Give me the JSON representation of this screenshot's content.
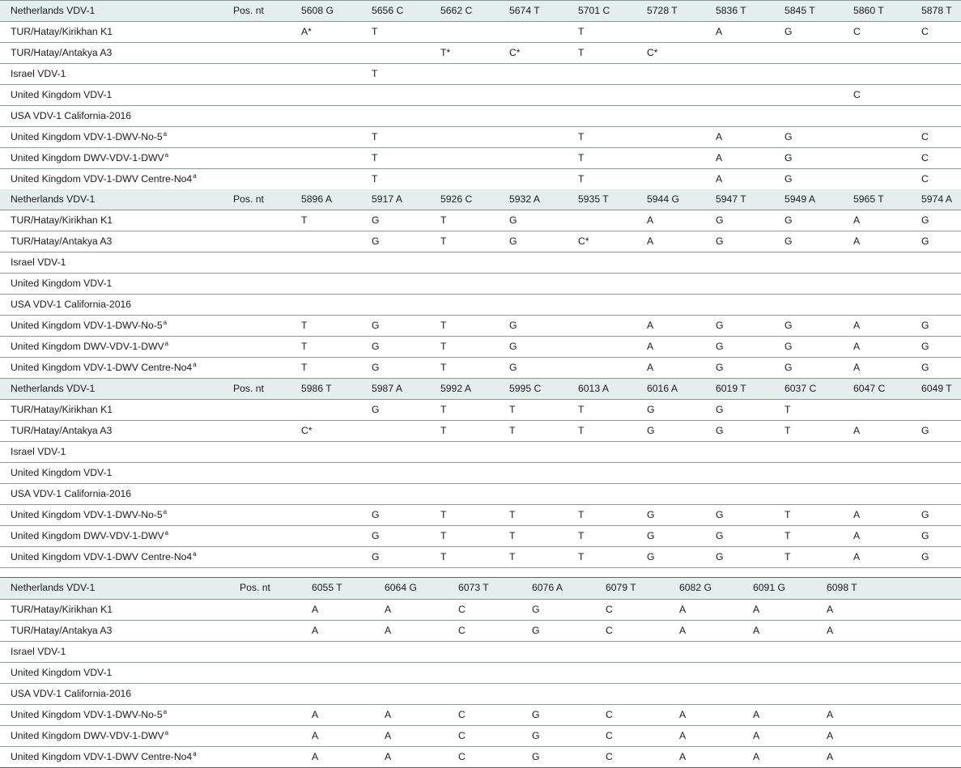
{
  "table": {
    "blocks": [
      {
        "header": {
          "label": "Netherlands VDV-1",
          "pos_label": "Pos. nt",
          "positions": [
            "5608 G",
            "5656 C",
            "5662 C",
            "5674 T",
            "5701 C",
            "5728 T",
            "5836 T",
            "5845 T",
            "5860 T",
            "5878 T"
          ]
        },
        "rows": [
          {
            "label": "TUR/Hatay/Kirikhan K1",
            "sup": "",
            "cells": [
              "A*",
              "T",
              "",
              "",
              "T",
              "",
              "A",
              "G",
              "C",
              "C"
            ]
          },
          {
            "label": "TUR/Hatay/Antakya A3",
            "sup": "",
            "cells": [
              "",
              "",
              "T*",
              "C*",
              "T",
              "C*",
              "",
              "",
              "",
              ""
            ]
          },
          {
            "label": "Israel VDV-1",
            "sup": "",
            "cells": [
              "",
              "T",
              "",
              "",
              "",
              "",
              "",
              "",
              "",
              ""
            ]
          },
          {
            "label": "United Kingdom VDV-1",
            "sup": "",
            "cells": [
              "",
              "",
              "",
              "",
              "",
              "",
              "",
              "",
              "C",
              ""
            ]
          },
          {
            "label": "USA VDV-1 California-2016",
            "sup": "",
            "cells": [
              "",
              "",
              "",
              "",
              "",
              "",
              "",
              "",
              "",
              ""
            ]
          },
          {
            "label": "United Kingdom VDV-1-DWV-No-5",
            "sup": "a",
            "cells": [
              "",
              "T",
              "",
              "",
              "T",
              "",
              "A",
              "G",
              "",
              "C"
            ]
          },
          {
            "label": "United Kingdom DWV-VDV-1-DWV",
            "sup": "a",
            "cells": [
              "",
              "T",
              "",
              "",
              "T",
              "",
              "A",
              "G",
              "",
              "C"
            ]
          },
          {
            "label": "United Kingdom VDV-1-DWV Centre-No4",
            "sup": "a",
            "cells": [
              "",
              "T",
              "",
              "",
              "T",
              "",
              "A",
              "G",
              "",
              "C"
            ]
          }
        ]
      },
      {
        "header": {
          "label": "Netherlands VDV-1",
          "pos_label": "Pos. nt",
          "positions": [
            "5896 A",
            "5917 A",
            "5926 C",
            "5932 A",
            "5935 T",
            "5944 G",
            "5947 T",
            "5949 A",
            "5965 T",
            "5974 A"
          ]
        },
        "rows": [
          {
            "label": "TUR/Hatay/Kirikhan K1",
            "sup": "",
            "cells": [
              "T",
              "G",
              "T",
              "G",
              "",
              "A",
              "G",
              "G",
              "A",
              "G"
            ]
          },
          {
            "label": "TUR/Hatay/Antakya A3",
            "sup": "",
            "cells": [
              "",
              "G",
              "T",
              "G",
              "C*",
              "A",
              "G",
              "G",
              "A",
              "G"
            ]
          },
          {
            "label": "Israel VDV-1",
            "sup": "",
            "cells": [
              "",
              "",
              "",
              "",
              "",
              "",
              "",
              "",
              "",
              ""
            ]
          },
          {
            "label": "United Kingdom VDV-1",
            "sup": "",
            "cells": [
              "",
              "",
              "",
              "",
              "",
              "",
              "",
              "",
              "",
              ""
            ]
          },
          {
            "label": "USA VDV-1 California-2016",
            "sup": "",
            "cells": [
              "",
              "",
              "",
              "",
              "",
              "",
              "",
              "",
              "",
              ""
            ]
          },
          {
            "label": "United Kingdom VDV-1-DWV-No-5",
            "sup": "a",
            "cells": [
              "T",
              "G",
              "T",
              "G",
              "",
              "A",
              "G",
              "G",
              "A",
              "G"
            ]
          },
          {
            "label": "United Kingdom DWV-VDV-1-DWV",
            "sup": "a",
            "cells": [
              "T",
              "G",
              "T",
              "G",
              "",
              "A",
              "G",
              "G",
              "A",
              "G"
            ]
          },
          {
            "label": "United Kingdom VDV-1-DWV Centre-No4",
            "sup": "a",
            "cells": [
              "T",
              "G",
              "T",
              "G",
              "",
              "A",
              "G",
              "G",
              "A",
              "G"
            ]
          }
        ]
      },
      {
        "header": {
          "label": "Netherlands VDV-1",
          "pos_label": "Pos. nt",
          "positions": [
            "5986 T",
            "5987 A",
            "5992 A",
            "5995 C",
            "6013 A",
            "6016 A",
            "6019 T",
            "6037 C",
            "6047 C",
            "6049 T"
          ]
        },
        "rows": [
          {
            "label": "TUR/Hatay/Kirikhan K1",
            "sup": "",
            "cells": [
              "",
              "G",
              "T",
              "T",
              "T",
              "G",
              "G",
              "T",
              "",
              ""
            ]
          },
          {
            "label": "TUR/Hatay/Antakya A3",
            "sup": "",
            "cells": [
              "C*",
              "",
              "T",
              "T",
              "T",
              "G",
              "G",
              "T",
              "A",
              "G"
            ]
          },
          {
            "label": "Israel VDV-1",
            "sup": "",
            "cells": [
              "",
              "",
              "",
              "",
              "",
              "",
              "",
              "",
              "",
              ""
            ]
          },
          {
            "label": "United Kingdom VDV-1",
            "sup": "",
            "cells": [
              "",
              "",
              "",
              "",
              "",
              "",
              "",
              "",
              "",
              ""
            ]
          },
          {
            "label": "USA VDV-1 California-2016",
            "sup": "",
            "cells": [
              "",
              "",
              "",
              "",
              "",
              "",
              "",
              "",
              "",
              ""
            ]
          },
          {
            "label": "United Kingdom VDV-1-DWV-No-5",
            "sup": "a",
            "cells": [
              "",
              "G",
              "T",
              "T",
              "T",
              "G",
              "G",
              "T",
              "A",
              "G"
            ]
          },
          {
            "label": "United Kingdom DWV-VDV-1-DWV",
            "sup": "a",
            "cells": [
              "",
              "G",
              "T",
              "T",
              "T",
              "G",
              "G",
              "T",
              "A",
              "G"
            ]
          },
          {
            "label": "United Kingdom VDV-1-DWV Centre-No4",
            "sup": "a",
            "cells": [
              "",
              "G",
              "T",
              "T",
              "T",
              "G",
              "G",
              "T",
              "A",
              "G"
            ]
          }
        ]
      },
      {
        "header": {
          "label": "Netherlands VDV-1",
          "pos_label": "Pos. nt",
          "positions": [
            "6055 T",
            "6064 G",
            "6073 T",
            "6076 A",
            "6079 T",
            "6082 G",
            "6091 G",
            "6098 T"
          ]
        },
        "rows": [
          {
            "label": "TUR/Hatay/Kirikhan K1",
            "sup": "",
            "cells": [
              "A",
              "A",
              "C",
              "G",
              "C",
              "A",
              "A",
              "A"
            ]
          },
          {
            "label": "TUR/Hatay/Antakya A3",
            "sup": "",
            "cells": [
              "A",
              "A",
              "C",
              "G",
              "C",
              "A",
              "A",
              "A"
            ]
          },
          {
            "label": "Israel VDV-1",
            "sup": "",
            "cells": [
              "",
              "",
              "",
              "",
              "",
              "",
              "",
              ""
            ]
          },
          {
            "label": "United Kingdom VDV-1",
            "sup": "",
            "cells": [
              "",
              "",
              "",
              "",
              "",
              "",
              "",
              ""
            ]
          },
          {
            "label": "USA VDV-1 California-2016",
            "sup": "",
            "cells": [
              "",
              "",
              "",
              "",
              "",
              "",
              "",
              ""
            ]
          },
          {
            "label": "United Kingdom VDV-1-DWV-No-5",
            "sup": "a",
            "cells": [
              "A",
              "A",
              "C",
              "G",
              "C",
              "A",
              "A",
              "A"
            ]
          },
          {
            "label": "United Kingdom DWV-VDV-1-DWV",
            "sup": "a",
            "cells": [
              "A",
              "A",
              "C",
              "G",
              "C",
              "A",
              "A",
              "A"
            ]
          },
          {
            "label": "United Kingdom VDV-1-DWV Centre-No4",
            "sup": "a",
            "cells": [
              "A",
              "A",
              "C",
              "G",
              "C",
              "A",
              "A",
              "A"
            ]
          }
        ]
      }
    ]
  }
}
